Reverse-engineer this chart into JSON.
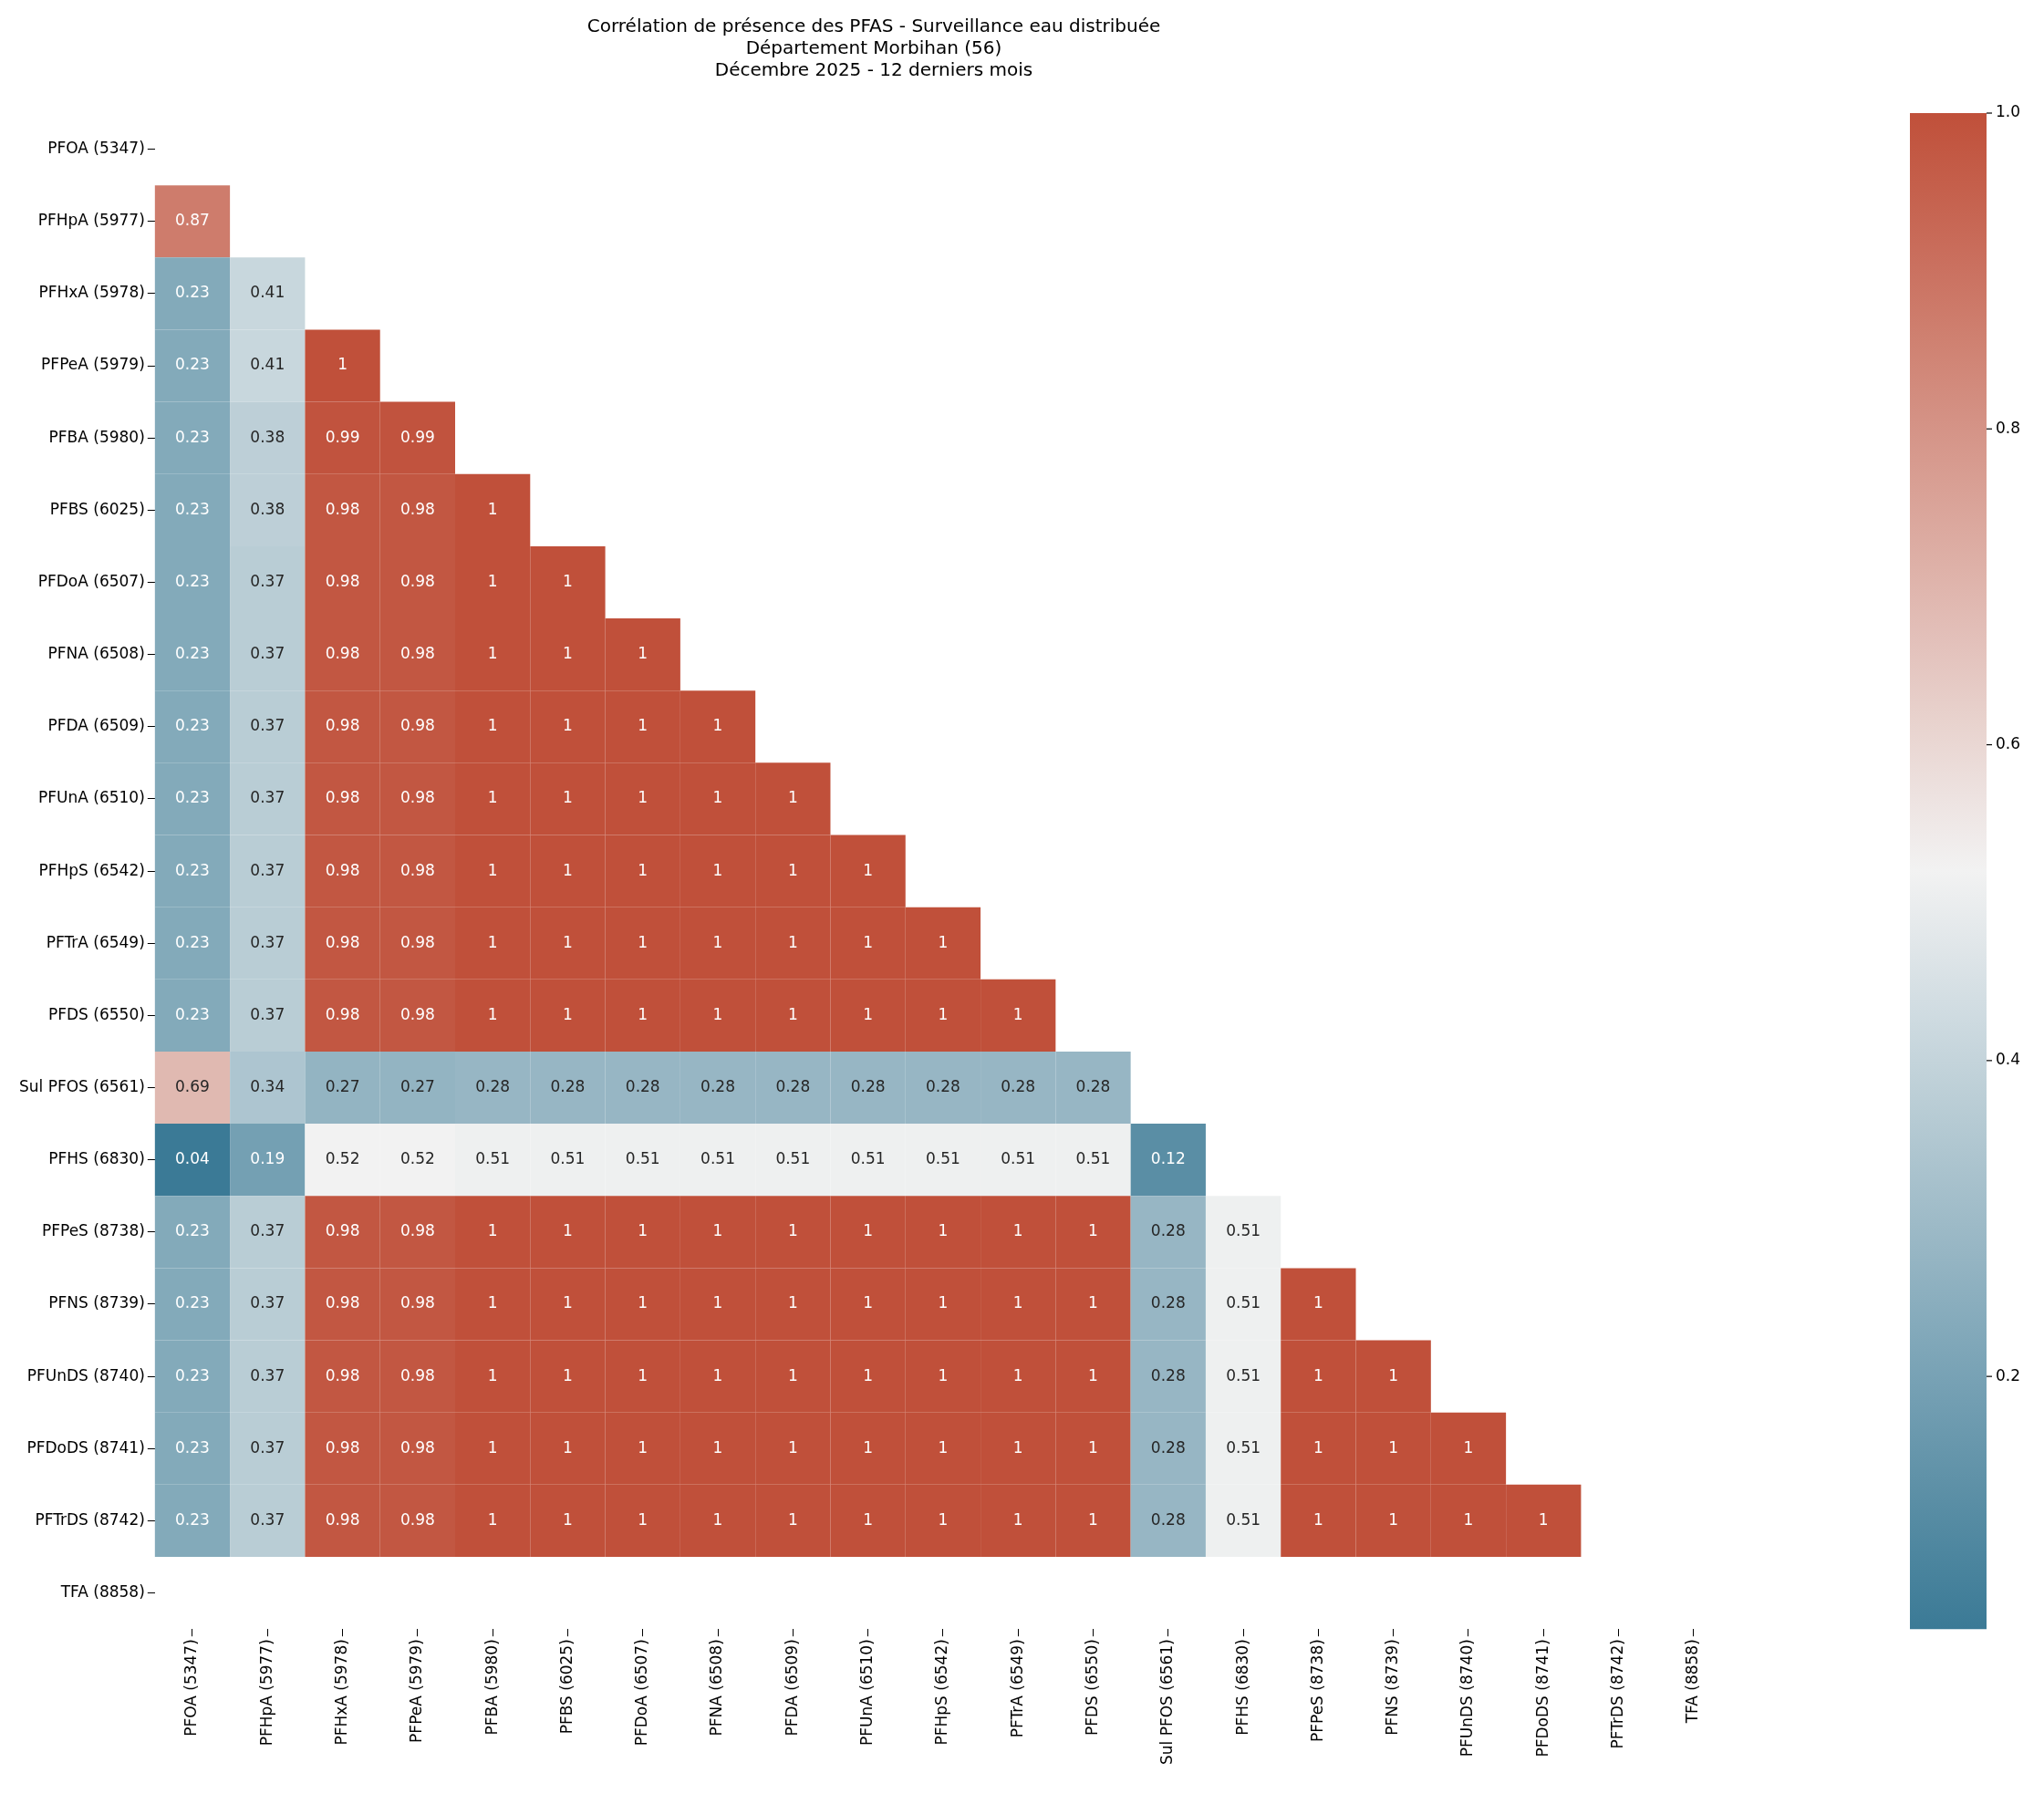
{
  "chart_data": {
    "type": "heatmap",
    "title": "Corrélation de présence des PFAS - Surveillance eau distribuée",
    "subtitle": "Département Morbihan (56)\nDécembre 2025 - 12 derniers mois",
    "categories": [
      "PFOA (5347)",
      "PFHpA (5977)",
      "PFHxA (5978)",
      "PFPeA (5979)",
      "PFBA (5980)",
      "PFBS (6025)",
      "PFDoA (6507)",
      "PFNA (6508)",
      "PFDA (6509)",
      "PFUnA (6510)",
      "PFHpS (6542)",
      "PFTrA (6549)",
      "PFDS (6550)",
      "Sul PFOS (6561)",
      "PFHS (6830)",
      "PFPeS (8738)",
      "PFNS (8739)",
      "PFUnDS (8740)",
      "PFDoDS (8741)",
      "PFTrDS (8742)",
      "TFA (8858)"
    ],
    "y_categories": [
      "PFOA (5347)",
      "PFHpA (5977)",
      "PFHxA (5978)",
      "PFPeA (5979)",
      "PFBA (5980)",
      "PFBS (6025)",
      "PFDoA (6507)",
      "PFNA (6508)",
      "PFDA (6509)",
      "PFUnA (6510)",
      "PFHpS (6542)",
      "PFTrA (6549)",
      "PFDS (6550)",
      "Sul PFOS (6561)",
      "PFHS (6830)",
      "PFPeS (8738)",
      "PFNS (8739)",
      "PFUnDS (8740)",
      "PFDoDS (8741)",
      "PFTrDS (8742)",
      "TFA (8858)"
    ],
    "cells": [
      [
        null,
        null,
        null,
        null,
        null,
        null,
        null,
        null,
        null,
        null,
        null,
        null,
        null,
        null,
        null,
        null,
        null,
        null,
        null,
        null,
        null
      ],
      [
        0.87,
        null,
        null,
        null,
        null,
        null,
        null,
        null,
        null,
        null,
        null,
        null,
        null,
        null,
        null,
        null,
        null,
        null,
        null,
        null,
        null
      ],
      [
        0.23,
        0.41,
        null,
        null,
        null,
        null,
        null,
        null,
        null,
        null,
        null,
        null,
        null,
        null,
        null,
        null,
        null,
        null,
        null,
        null,
        null
      ],
      [
        0.23,
        0.41,
        1,
        null,
        null,
        null,
        null,
        null,
        null,
        null,
        null,
        null,
        null,
        null,
        null,
        null,
        null,
        null,
        null,
        null,
        null
      ],
      [
        0.23,
        0.38,
        0.99,
        0.99,
        null,
        null,
        null,
        null,
        null,
        null,
        null,
        null,
        null,
        null,
        null,
        null,
        null,
        null,
        null,
        null,
        null
      ],
      [
        0.23,
        0.38,
        0.98,
        0.98,
        1,
        null,
        null,
        null,
        null,
        null,
        null,
        null,
        null,
        null,
        null,
        null,
        null,
        null,
        null,
        null,
        null
      ],
      [
        0.23,
        0.37,
        0.98,
        0.98,
        1,
        1,
        null,
        null,
        null,
        null,
        null,
        null,
        null,
        null,
        null,
        null,
        null,
        null,
        null,
        null,
        null
      ],
      [
        0.23,
        0.37,
        0.98,
        0.98,
        1,
        1,
        1,
        null,
        null,
        null,
        null,
        null,
        null,
        null,
        null,
        null,
        null,
        null,
        null,
        null,
        null
      ],
      [
        0.23,
        0.37,
        0.98,
        0.98,
        1,
        1,
        1,
        1,
        null,
        null,
        null,
        null,
        null,
        null,
        null,
        null,
        null,
        null,
        null,
        null,
        null
      ],
      [
        0.23,
        0.37,
        0.98,
        0.98,
        1,
        1,
        1,
        1,
        1,
        null,
        null,
        null,
        null,
        null,
        null,
        null,
        null,
        null,
        null,
        null,
        null
      ],
      [
        0.23,
        0.37,
        0.98,
        0.98,
        1,
        1,
        1,
        1,
        1,
        1,
        null,
        null,
        null,
        null,
        null,
        null,
        null,
        null,
        null,
        null,
        null
      ],
      [
        0.23,
        0.37,
        0.98,
        0.98,
        1,
        1,
        1,
        1,
        1,
        1,
        1,
        null,
        null,
        null,
        null,
        null,
        null,
        null,
        null,
        null,
        null
      ],
      [
        0.23,
        0.37,
        0.98,
        0.98,
        1,
        1,
        1,
        1,
        1,
        1,
        1,
        1,
        null,
        null,
        null,
        null,
        null,
        null,
        null,
        null,
        null
      ],
      [
        0.69,
        0.34,
        0.27,
        0.27,
        0.28,
        0.28,
        0.28,
        0.28,
        0.28,
        0.28,
        0.28,
        0.28,
        0.28,
        null,
        null,
        null,
        null,
        null,
        null,
        null,
        null
      ],
      [
        0.04,
        0.19,
        0.52,
        0.52,
        0.51,
        0.51,
        0.51,
        0.51,
        0.51,
        0.51,
        0.51,
        0.51,
        0.51,
        0.12,
        null,
        null,
        null,
        null,
        null,
        null,
        null
      ],
      [
        0.23,
        0.37,
        0.98,
        0.98,
        1,
        1,
        1,
        1,
        1,
        1,
        1,
        1,
        1,
        0.28,
        0.51,
        null,
        null,
        null,
        null,
        null,
        null
      ],
      [
        0.23,
        0.37,
        0.98,
        0.98,
        1,
        1,
        1,
        1,
        1,
        1,
        1,
        1,
        1,
        0.28,
        0.51,
        1,
        null,
        null,
        null,
        null,
        null
      ],
      [
        0.23,
        0.37,
        0.98,
        0.98,
        1,
        1,
        1,
        1,
        1,
        1,
        1,
        1,
        1,
        0.28,
        0.51,
        1,
        1,
        null,
        null,
        null,
        null
      ],
      [
        0.23,
        0.37,
        0.98,
        0.98,
        1,
        1,
        1,
        1,
        1,
        1,
        1,
        1,
        1,
        0.28,
        0.51,
        1,
        1,
        1,
        null,
        null,
        null
      ],
      [
        0.23,
        0.37,
        0.98,
        0.98,
        1,
        1,
        1,
        1,
        1,
        1,
        1,
        1,
        1,
        0.28,
        0.51,
        1,
        1,
        1,
        1,
        null,
        null
      ],
      [
        null,
        null,
        null,
        null,
        null,
        null,
        null,
        null,
        null,
        null,
        null,
        null,
        null,
        null,
        null,
        null,
        null,
        null,
        null,
        null,
        null
      ]
    ],
    "clim": [
      0.04,
      1
    ],
    "cticks": [
      0.2,
      0.4,
      0.6,
      {
        "value": 1,
        "label": "1.0"
      },
      0.8
    ],
    "data_labels": true
  }
}
